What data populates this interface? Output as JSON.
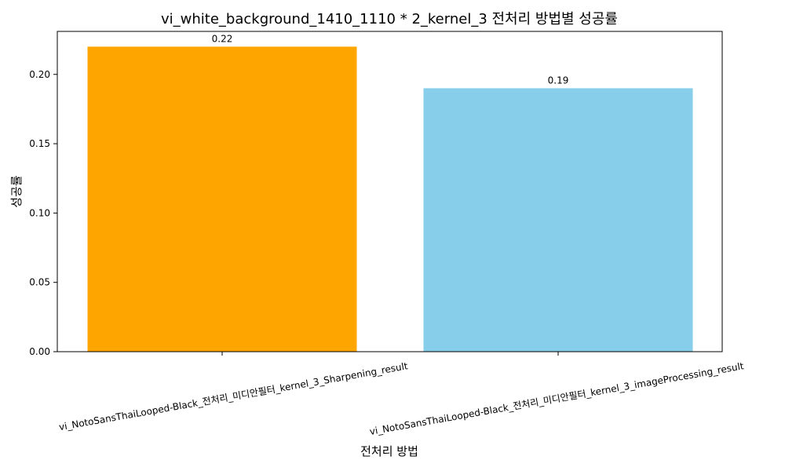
{
  "chart_data": {
    "type": "bar",
    "title": "vi_white_background_1410_1110 * 2_kernel_3 전처리 방법별 성공률",
    "xlabel": "전처리 방법",
    "ylabel": "성공률",
    "categories": [
      "vi_NotoSansThaiLooped-Black_전처리_미디안필터_kernel_3_Sharpening_result",
      "vi_NotoSansThaiLooped-Black_전처리_미디안필터_kernel_3_imageProcessing_result"
    ],
    "values": [
      0.22,
      0.19
    ],
    "value_labels": [
      "0.22",
      "0.19"
    ],
    "colors": [
      "#FFA500",
      "#87CEEB"
    ],
    "ylim": [
      0,
      0.231
    ],
    "yticks": [
      0.0,
      0.05,
      0.1,
      0.15,
      0.2
    ],
    "ytick_labels": [
      "0.00",
      "0.05",
      "0.10",
      "0.15",
      "0.20"
    ],
    "grid": false,
    "legend": "none"
  }
}
